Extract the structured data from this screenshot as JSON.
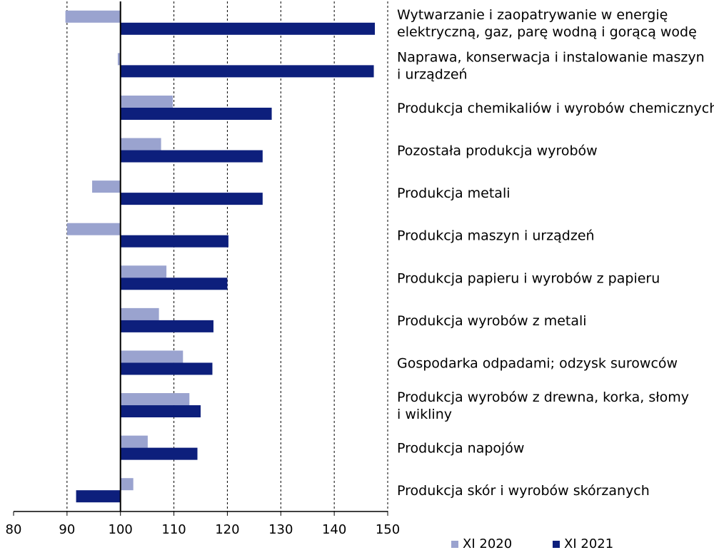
{
  "chart_data": {
    "type": "bar",
    "orientation": "horizontal",
    "baseline": 100,
    "xlim": [
      80,
      150
    ],
    "x_ticks": [
      "80",
      "90",
      "100",
      "110",
      "120",
      "130",
      "140",
      "150"
    ],
    "grid": "vertical dashed",
    "legend_position": "bottom",
    "categories": [
      [
        "Wytwarzanie i zaopatrywanie w energię",
        "elektryczną, gaz, parę wodną i gorącą wodę"
      ],
      [
        "Naprawa, konserwacja i instalowanie maszyn",
        "i urządzeń"
      ],
      [
        "Produkcja chemikaliów i wyrobów chemicznych"
      ],
      [
        "Pozostała produkcja wyrobów"
      ],
      [
        "Produkcja metali"
      ],
      [
        "Produkcja maszyn i urządzeń"
      ],
      [
        "Produkcja papieru i wyrobów z papieru"
      ],
      [
        "Produkcja wyrobów z metali"
      ],
      [
        "Gospodarka odpadami; odzysk surowców"
      ],
      [
        "Produkcja wyrobów z drewna, korka, słomy",
        "i wikliny"
      ],
      [
        "Produkcja napojów"
      ],
      [
        "Produkcja skór i wyrobów skórzanych"
      ]
    ],
    "series": [
      {
        "name": "XI 2020",
        "color": "#9aa3cf",
        "values": [
          89.7,
          99.5,
          109.8,
          107.6,
          94.7,
          90.0,
          108.6,
          107.2,
          111.7,
          112.9,
          105.1,
          102.4
        ]
      },
      {
        "name": "XI 2021",
        "color": "#0d1f7c",
        "values": [
          147.6,
          147.4,
          128.3,
          126.6,
          126.6,
          120.2,
          120.0,
          117.4,
          117.2,
          115.0,
          114.4,
          91.7
        ]
      }
    ]
  }
}
